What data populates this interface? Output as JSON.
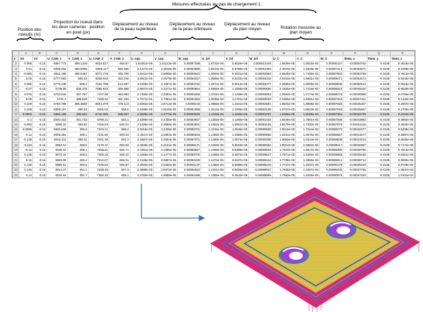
{
  "title": "Mesures effectuées au pas de chargement 1 :",
  "annotations": [
    {
      "text": "Position des noeuds (m)"
    },
    {
      "text": "Projection du noeud dans les deux cameras : position en pixel (px)"
    },
    {
      "text": "Déplacement au niveau de la peau supérieure"
    },
    {
      "text": "Déplacement au niveau de la peau inférieure"
    },
    {
      "text": "Déplacement au niveau du plan moyen"
    },
    {
      "text": "Rotation mesurée au plan moyen"
    }
  ],
  "sheet": {
    "columns": [
      "A",
      "B",
      "C",
      "D",
      "E",
      "F",
      "G",
      "H",
      "I",
      "J",
      "K",
      "L",
      "M",
      "N",
      "O",
      "P",
      "Q",
      "R",
      "S"
    ],
    "header_row": [
      "X0",
      "Y0",
      "U_CAM_1",
      "V_CAM_1",
      "U_CAM_2",
      "V_CAM_2",
      "U_sup",
      "V_sup",
      "W_sup",
      "U_inf",
      "V_inf",
      "W_inf",
      "U_C",
      "V_C",
      "W_C",
      "theta_x",
      "theta_y",
      "theta_z"
    ],
    "rows": [
      [
        "0.006",
        "-0.15",
        "6587.772",
        "488.1318",
        "6623.817",
        "694.87",
        "1.61061e-05",
        "2.41123e-05",
        "0.00087288",
        "1.8722e-05",
        "5.5625e-06",
        "0.000912449",
        "1.6639e-05",
        "1.5002e-05",
        "0.00090127",
        "-0.00054752",
        "-0.0105",
        "8.4516e-05"
      ],
      [
        "0.01",
        "-0.15",
        "6009.464",
        "480.5055",
        "6069.117",
        "656.506",
        "3.1427e-05",
        "2.3518e-05",
        "0.00083589",
        "1.6613e-05",
        "5.5798e-06",
        "0.00091363",
        "2.4019e-05",
        "1.4549e-05",
        "0.00087414",
        "-0.00053871",
        "-0.0105",
        "8.3158e-05"
      ],
      [
        "-0.066",
        "-0.15",
        "5911.196",
        "486.6467",
        "6071.476",
        "495.796",
        "3.9411e-05",
        "2.5609e-05",
        "0.00083542",
        "1.3094e-05",
        "9.2021e-06",
        "0.00092063",
        "2.6629e-05",
        "1.7405e-05",
        "0.00087802",
        "-0.00052768",
        "-0.0105",
        "8.7612e-05"
      ],
      [
        "0.05",
        "-0.15",
        "5777.583",
        "508.43",
        "6038.043",
        "483.246",
        "3.8612e-05",
        "2.2579e-05",
        "0.00084227",
        "1.3595e-05",
        "9.2222e-06",
        "0.00094316",
        "2.6104e-05",
        "1.5901e-05",
        "0.00089271",
        "-0.00051574",
        "-0.0105",
        "8.9246e-05"
      ],
      [
        "0.086",
        "-0.15",
        "5779.438",
        "508.2",
        "7032.799",
        "513.557",
        "3.0195e-05",
        "2.1597e-05",
        "0.00083792",
        "1.4974e-05",
        "8.6014e-06",
        "0.00094077",
        "2.2585e-05",
        "1.5099e-05",
        "0.00088935",
        "-0.00050512",
        "-0.0105",
        "9.0516e-05"
      ],
      [
        "-0.07",
        "-0.15",
        "5736.06",
        "500.476",
        "7086.823",
        "466.868",
        "2.8847e-05",
        "2.3271e-05",
        "0.00085894",
        "1.4806e-05",
        "1.1568e-05",
        "0.00090566",
        "2.1826e-05",
        "1.7419e-05",
        "0.00088224",
        "-0.00049432",
        "-0.0105",
        "8.9628e-05"
      ],
      [
        "0.076",
        "-0.15",
        "5733.632",
        "497.757",
        "7107.68",
        "463.893",
        "2.7486e-05",
        "2.3091e-05",
        "0.00083259",
        "1.3701e-05",
        "1.1258e-05",
        "0.00093093",
        "2.0594e-05",
        "1.7174e-05",
        "0.00088176",
        "-0.00048399",
        "-0.0105",
        "9.0796e-05"
      ],
      [
        "0.09",
        "-0.15",
        "5731.2",
        "488.549",
        "7168.42",
        "461.193",
        "2.7671e-05",
        "2.7061e-05",
        "0.00081684",
        "1.3039e-05",
        "1.1721e-05",
        "0.00093003",
        "2.0355e-05",
        "1.9391e-05",
        "0.00087343",
        "-0.00047411",
        "-0.0105",
        "9.1432e-05"
      ],
      [
        "0.108",
        "-0.15",
        "5750.789",
        "485.3668",
        "6601.379",
        "476.113",
        "2.6052e-05",
        "2.5714e-05",
        "0.0008146",
        "1.0955e-05",
        "1.2101e-05",
        "0.00092591",
        "1.8504e-05",
        "1.8908e-05",
        "0.00087026",
        "-0.00046467",
        "-0.0105",
        "9.2067e-05"
      ],
      [
        "0.108",
        "-0.15",
        "5858.197",
        "480.52",
        "6481.02",
        "558.6",
        "2.6499e-05",
        "2.5149e-05",
        "0.00081958",
        "1.1014e-05",
        "1.1936e-05",
        "0.00092108",
        "1.8757e-05",
        "1.8543e-05",
        "0.00087033",
        "-0.00045567",
        "-0.0105",
        "9.2705e-05"
      ],
      [
        "0.0906",
        "-0.15",
        "5856.189",
        "486.562",
        "6715.269",
        "606.667",
        "2.5588e-05",
        "2.4778e-05",
        "0.00083025",
        "1.1183e-05",
        "1.1592e-05",
        "0.00091757",
        "1.8386e-05",
        "1.8185e-05",
        "0.00087391",
        "-0.00044709",
        "-0.0105",
        "9.3343e-05"
      ],
      [
        "-0.1",
        "-0.15",
        "5940.323",
        "491.732",
        "6789.21",
        "603.1",
        "2.5399e-05",
        "2.4336e-05",
        "0.00083937",
        "1.1292e-05",
        "1.1265e-05",
        "0.00091434",
        "1.8346e-05",
        "1.7801e-05",
        "0.00087686",
        "-0.00043892",
        "-0.0105",
        "9.3982e-05"
      ],
      [
        "-0.093",
        "-0.15",
        "5985.22",
        "490.91",
        "7155.84",
        "630.01",
        "2.5195e-05",
        "2.3888e-05",
        "0.00084831",
        "1.1362e-05",
        "1.0951e-05",
        "0.00091128",
        "1.8279e-05",
        "1.7420e-05",
        "0.00087979",
        "-0.00043115",
        "-0.0105",
        "9.4620e-05"
      ],
      [
        "0.0895",
        "-0.15",
        "5926.606",
        "495.9",
        "7204.21",
        "598.4",
        "2.5016e-05",
        "2.3439e-05",
        "0.00085701",
        "1.1416e-05",
        "1.0648e-05",
        "0.00090839",
        "1.8216e-05",
        "1.7044e-05",
        "0.00088270",
        "-0.00042377",
        "-0.0105",
        "9.5259e-05"
      ],
      [
        "-0.11",
        "-0.15",
        "6008.384",
        "488.1",
        "7231.66",
        "600.03",
        "2.4847e-05",
        "2.2994e-05",
        "0.00086548",
        "1.1455e-05",
        "1.0356e-05",
        "0.00090566",
        "1.8151e-05",
        "1.6675e-05",
        "0.00088557",
        "-0.00041677",
        "-0.0105",
        "9.5897e-05"
      ],
      [
        "-0.128",
        "-0.15",
        "6016.211",
        "488.31",
        "7261.48",
        "602.3",
        "2.4687e-05",
        "2.2554e-05",
        "0.00087371",
        "1.1480e-05",
        "1.0074e-05",
        "0.00090308",
        "1.8083e-05",
        "1.6314e-05",
        "0.00088839",
        "-0.00041014",
        "-0.0105",
        "9.6536e-05"
      ],
      [
        "-0.115",
        "-0.15",
        "5962.12",
        "488.5",
        "7275.37",
        "603.03",
        "2.4535e-05",
        "2.2121e-05",
        "0.00088171",
        "1.1493e-05",
        "9.8023e-06",
        "0.00090064",
        "1.8014e-05",
        "1.5962e-05",
        "0.00089117",
        "-0.00040387",
        "-0.0105",
        "9.7174e-05"
      ],
      [
        "-0.13",
        "-0.15",
        "6005.22",
        "489.1",
        "7288.81",
        "604.71",
        "2.4391e-05",
        "2.1695e-05",
        "0.00088947",
        "1.1495e-05",
        "9.5399e-06",
        "0.00089834",
        "1.7943e-05",
        "1.5617e-05",
        "0.00089390",
        "-0.00039796",
        "-0.0105",
        "9.7813e-05"
      ],
      [
        "0.135",
        "-0.15",
        "5972.42",
        "489.5",
        "7300.25",
        "605.22",
        "2.4255e-05",
        "2.1277e-05",
        "0.00089700",
        "1.1488e-05",
        "9.2872e-06",
        "0.00089617",
        "1.7871e-05",
        "1.5282e-05",
        "0.00089658",
        "-0.00039238",
        "-0.0105",
        "9.8451e-05"
      ],
      [
        "0.16",
        "-0.15",
        "5963.08",
        "490.2",
        "7312.67",
        "606.01",
        "2.4126e-05",
        "2.0867e-05",
        "0.00090430",
        "1.1473e-05",
        "9.0437e-06",
        "0.00089412",
        "1.7799e-05",
        "1.4955e-05",
        "0.00089921",
        "-0.00038713",
        "-0.0105",
        "9.9090e-05"
      ],
      [
        "0.128",
        "-0.15",
        "5990.51",
        "490.5",
        "7325.84",
        "606.87",
        "2.4004e-05",
        "2.0465e-05",
        "0.00091137",
        "1.1450e-05",
        "8.8089e-06",
        "0.00089219",
        "1.7727e-05",
        "1.4637e-05",
        "0.00090178",
        "-0.00038219",
        "-0.0105",
        "9.9728e-05"
      ],
      [
        "0.145",
        "-0.15",
        "6012.07",
        "491.1",
        "7338.46",
        "607.3",
        "2.3889e-05",
        "2.0072e-05",
        "0.00091822",
        "1.1421e-05",
        "8.5826e-06",
        "0.00089037",
        "1.7655e-05",
        "1.4327e-05",
        "0.00090430",
        "-0.00037755",
        "-0.0105",
        "1.0037e-04"
      ],
      [
        "0.14",
        "-0.15",
        "6024.64",
        "491.7",
        "7350.18",
        "608.1",
        "2.3780e-05",
        "1.9688e-05",
        "0.00092485",
        "1.1386e-05",
        "8.3642e-06",
        "0.00088865",
        "1.7583e-05",
        "1.4026e-05",
        "0.00090675",
        "-0.00037320",
        "-0.0105",
        "1.0101e-04"
      ],
      [
        "0.155",
        "-0.15",
        "6036.33",
        "492.2",
        "7362.91",
        "608.6",
        "2.3676e-05",
        "1.9312e-05",
        "0.00093127",
        "1.1346e-05",
        "8.1535e-06",
        "0.00088703",
        "1.7511e-05",
        "1.3733e-05",
        "0.00090915",
        "-0.00036912",
        "-0.0105",
        "1.0164e-04"
      ],
      [
        "0.17",
        "-0.15",
        "6048.8",
        "492.9",
        "7375.66",
        "609.4",
        "2.3578e-05",
        "1.8946e-05",
        "0.00093748",
        "1.1302e-05",
        "7.9502e-06",
        "0.00088551",
        "1.7440e-05",
        "1.3448e-05",
        "0.00091150",
        "-0.00036531",
        "-0.0105",
        "1.0228e-04"
      ]
    ]
  },
  "colors": {
    "mesh_background": "#e8206e",
    "mesh_fill": "#f4c430",
    "mesh_lines": "#3fa9d6",
    "hole_fill": "#a23fd8",
    "arrow": "#3b6fb6"
  }
}
